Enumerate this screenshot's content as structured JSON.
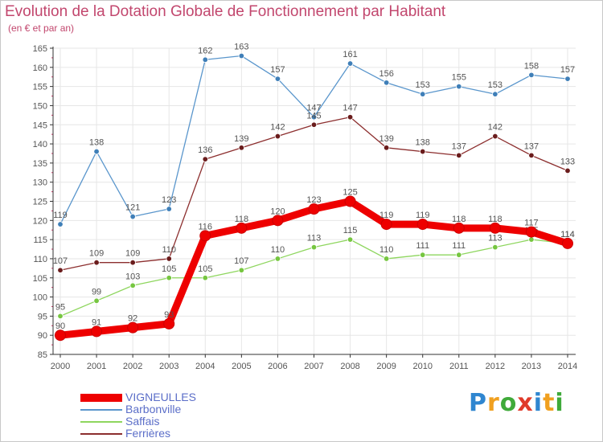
{
  "colors": {
    "title": "#c2476e",
    "axis": "#333333",
    "grid": "#e6e6e6",
    "label": "#555555",
    "legend_text": "#5b6ec8"
  },
  "chart_data": {
    "type": "line",
    "title": "Evolution de la Dotation Globale de Fonctionnement par Habitant",
    "subtitle": "(en € et par an)",
    "xlabel": "",
    "ylabel": "",
    "x": [
      "2000",
      "2001",
      "2002",
      "2003",
      "2004",
      "2005",
      "2006",
      "2007",
      "2008",
      "2009",
      "2010",
      "2011",
      "2012",
      "2013",
      "2014"
    ],
    "ylim": [
      85,
      165
    ],
    "yticks": [
      85,
      90,
      95,
      100,
      105,
      110,
      115,
      120,
      125,
      130,
      135,
      140,
      145,
      150,
      155,
      160,
      165
    ],
    "grid": true,
    "series": [
      {
        "name": "Barbonville",
        "color": "#5a96cc",
        "marker": "#3f7fb8",
        "values": [
          119,
          138,
          121,
          123,
          162,
          163,
          157,
          147,
          161,
          156,
          153,
          155,
          153,
          158,
          157
        ]
      },
      {
        "name": "Ferrières",
        "color": "#8c2e2e",
        "marker": "#6a1c1c",
        "values": [
          107,
          109,
          109,
          110,
          136,
          139,
          142,
          145,
          147,
          139,
          138,
          137,
          142,
          137,
          133
        ]
      },
      {
        "name": "Saffais",
        "color": "#8ed65e",
        "marker": "#76c640",
        "values": [
          95,
          99,
          103,
          105,
          105,
          107,
          110,
          113,
          115,
          110,
          111,
          111,
          113,
          115,
          114
        ]
      },
      {
        "name": "VIGNEULLES",
        "color": "#ee0000",
        "marker": "#ee0000",
        "values": [
          90,
          91,
          92,
          93,
          116,
          118,
          120,
          123,
          125,
          119,
          119,
          118,
          118,
          117,
          114
        ]
      }
    ],
    "legend": [
      {
        "name": "VIGNEULLES",
        "color": "#ee0000"
      },
      {
        "name": "Barbonville",
        "color": "#5a96cc"
      },
      {
        "name": "Saffais",
        "color": "#8ed65e"
      },
      {
        "name": "Ferrières",
        "color": "#8c2e2e"
      }
    ]
  },
  "logo": {
    "letters": [
      "P",
      "r",
      "o",
      "x",
      "i",
      "t",
      "i"
    ],
    "colors": [
      "#2f86d0",
      "#f0a020",
      "#3faa3a",
      "#e03a2a",
      "#2f86d0",
      "#f0a020",
      "#3faa3a"
    ]
  }
}
